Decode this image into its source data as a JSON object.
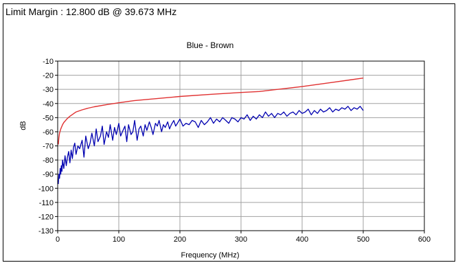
{
  "header": {
    "limit_margin_text": "Limit Margin : 12.800 dB @ 39.673 MHz"
  },
  "colors": {
    "limit_line": "#e03030",
    "measured_line": "#0000b0",
    "grid": "#a0a0a0",
    "frame": "#000000"
  },
  "chart_data": {
    "type": "line",
    "title": "Blue - Brown",
    "xlabel": "Frequency (MHz)",
    "ylabel": "dB",
    "xlim": [
      0,
      600
    ],
    "ylim": [
      -130,
      -10
    ],
    "x_ticks": [
      0,
      100,
      200,
      300,
      400,
      500,
      600
    ],
    "y_ticks": [
      -10,
      -20,
      -30,
      -40,
      -50,
      -60,
      -70,
      -80,
      -90,
      -100,
      -110,
      -120,
      -130
    ],
    "grid": true,
    "series": [
      {
        "role": "limit",
        "color": "#e03030",
        "x": [
          1,
          2,
          3,
          5,
          8,
          10,
          15,
          20,
          25,
          30,
          40,
          50,
          60,
          80,
          100,
          125,
          150,
          200,
          250,
          300,
          330,
          350,
          400,
          450,
          500
        ],
        "y": [
          -69,
          -64,
          -61,
          -58,
          -55,
          -53.5,
          -51,
          -49,
          -47.5,
          -46,
          -44.5,
          -43.3,
          -42.3,
          -40.8,
          -39.5,
          -38,
          -37,
          -35,
          -33.5,
          -32.2,
          -31.5,
          -30.5,
          -28,
          -25,
          -22
        ]
      },
      {
        "role": "measured",
        "color": "#0000b0",
        "x": [
          1,
          2,
          3,
          4,
          5,
          6,
          7,
          8,
          10,
          12,
          14,
          16,
          18,
          20,
          22,
          24,
          26,
          28,
          30,
          33,
          36,
          40,
          43,
          46,
          50,
          53,
          56,
          60,
          63,
          66,
          70,
          73,
          76,
          80,
          83,
          86,
          90,
          93,
          96,
          100,
          103,
          106,
          110,
          113,
          116,
          120,
          123,
          126,
          130,
          133,
          136,
          140,
          143,
          146,
          150,
          153,
          156,
          160,
          163,
          166,
          170,
          173,
          176,
          180,
          183,
          186,
          190,
          193,
          196,
          200,
          205,
          210,
          215,
          220,
          225,
          230,
          235,
          240,
          245,
          250,
          255,
          260,
          265,
          270,
          275,
          280,
          285,
          290,
          295,
          300,
          305,
          310,
          315,
          320,
          325,
          330,
          335,
          340,
          345,
          350,
          355,
          360,
          365,
          370,
          375,
          380,
          385,
          390,
          395,
          400,
          405,
          410,
          415,
          420,
          425,
          430,
          435,
          440,
          445,
          450,
          455,
          460,
          465,
          470,
          475,
          480,
          485,
          490,
          495,
          500
        ],
        "y": [
          -97,
          -90,
          -93,
          -86,
          -90,
          -84,
          -88,
          -80,
          -86,
          -77,
          -84,
          -78,
          -74,
          -82,
          -73,
          -79,
          -71,
          -68,
          -76,
          -70,
          -72,
          -66,
          -78,
          -63,
          -72,
          -68,
          -61,
          -70,
          -58,
          -67,
          -63,
          -56,
          -69,
          -60,
          -64,
          -55,
          -66,
          -57,
          -62,
          -54,
          -63,
          -60,
          -56,
          -67,
          -55,
          -62,
          -60,
          -52,
          -66,
          -58,
          -56,
          -63,
          -55,
          -59,
          -53,
          -57,
          -62,
          -54,
          -56,
          -52,
          -60,
          -55,
          -57,
          -53,
          -58,
          -55,
          -52,
          -56,
          -54,
          -51,
          -56,
          -54,
          -55,
          -52,
          -53,
          -57,
          -52,
          -55,
          -53,
          -50,
          -54,
          -51,
          -53,
          -50,
          -52,
          -54,
          -50,
          -51,
          -53,
          -50,
          -51,
          -48,
          -52,
          -49,
          -51,
          -48,
          -50,
          -46,
          -49,
          -47,
          -50,
          -47,
          -48,
          -46,
          -49,
          -47,
          -46,
          -48,
          -45,
          -47,
          -46,
          -44,
          -48,
          -45,
          -47,
          -44,
          -46,
          -45,
          -43,
          -46,
          -44,
          -45,
          -43,
          -44,
          -42,
          -45,
          -43,
          -44,
          -42,
          -45
        ]
      }
    ]
  }
}
